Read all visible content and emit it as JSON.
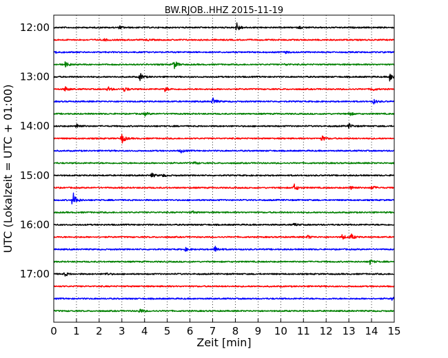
{
  "chart_data": {
    "type": "line",
    "title": "BW.RJOB..HHZ 2015-11-19",
    "xlabel": "Zeit  [min]",
    "ylabel": "UTC (Lokalzeit = UTC + 01:00)",
    "xlim": [
      0,
      15
    ],
    "x_ticks": [
      "0",
      "1",
      "2",
      "3",
      "4",
      "5",
      "6",
      "7",
      "8",
      "9",
      "10",
      "11",
      "12",
      "13",
      "14",
      "15"
    ],
    "y_tick_labels": [
      "12:00",
      "13:00",
      "14:00",
      "15:00",
      "16:00",
      "17:00"
    ],
    "grid": "vertical dotted at each minute",
    "trace_colors": [
      "#000000",
      "#ff0000",
      "#0000ff",
      "#008000"
    ],
    "series": [
      {
        "start": "12:00",
        "events": [
          {
            "t": 2.9,
            "amp": 0.25
          },
          {
            "t": 8.05,
            "amp": 0.85
          },
          {
            "t": 10.8,
            "amp": 0.2
          }
        ]
      },
      {
        "start": "12:15",
        "events": [
          {
            "t": 2.2,
            "amp": 0.2
          },
          {
            "t": 4.1,
            "amp": 0.15
          }
        ]
      },
      {
        "start": "12:30",
        "events": [
          {
            "t": 0.1,
            "amp": 0.2
          },
          {
            "t": 10.2,
            "amp": 0.15
          }
        ]
      },
      {
        "start": "12:45",
        "events": [
          {
            "t": 0.5,
            "amp": 0.4
          },
          {
            "t": 5.3,
            "amp": 0.7
          },
          {
            "t": 10.2,
            "amp": 0.15
          }
        ]
      },
      {
        "start": "13:00",
        "events": [
          {
            "t": 3.8,
            "amp": 0.6
          },
          {
            "t": 14.8,
            "amp": 0.7
          }
        ]
      },
      {
        "start": "13:15",
        "events": [
          {
            "t": 0.5,
            "amp": 0.4
          },
          {
            "t": 2.4,
            "amp": 0.35
          },
          {
            "t": 3.1,
            "amp": 0.4
          },
          {
            "t": 4.9,
            "amp": 0.35
          },
          {
            "t": 14.0,
            "amp": 0.35
          }
        ]
      },
      {
        "start": "13:30",
        "events": [
          {
            "t": 7.0,
            "amp": 0.6
          },
          {
            "t": 14.1,
            "amp": 0.35
          }
        ]
      },
      {
        "start": "13:45",
        "events": [
          {
            "t": 4.0,
            "amp": 0.3
          },
          {
            "t": 13.0,
            "amp": 0.35
          }
        ]
      },
      {
        "start": "14:00",
        "events": [
          {
            "t": 1.0,
            "amp": 0.5
          },
          {
            "t": 13.0,
            "amp": 0.4
          }
        ]
      },
      {
        "start": "14:15",
        "events": [
          {
            "t": 3.0,
            "amp": 0.8
          },
          {
            "t": 11.8,
            "amp": 0.5
          }
        ]
      },
      {
        "start": "14:30",
        "events": [
          {
            "t": 5.6,
            "amp": 0.3
          }
        ]
      },
      {
        "start": "14:45",
        "events": [
          {
            "t": 6.2,
            "amp": 0.2
          }
        ]
      },
      {
        "start": "15:00",
        "events": [
          {
            "t": 4.3,
            "amp": 0.4
          },
          {
            "t": 4.8,
            "amp": 0.2
          }
        ]
      },
      {
        "start": "15:15",
        "events": [
          {
            "t": 10.6,
            "amp": 0.55
          },
          {
            "t": 13.1,
            "amp": 0.35
          },
          {
            "t": 14.0,
            "amp": 0.4
          }
        ]
      },
      {
        "start": "15:30",
        "events": [
          {
            "t": 0.85,
            "amp": 1.3
          }
        ]
      },
      {
        "start": "15:45",
        "events": [
          {
            "t": 6.1,
            "amp": 0.2
          }
        ]
      },
      {
        "start": "16:00",
        "events": [
          {
            "t": 10.6,
            "amp": 0.25
          }
        ]
      },
      {
        "start": "16:15",
        "events": [
          {
            "t": 11.2,
            "amp": 0.25
          },
          {
            "t": 12.7,
            "amp": 0.4
          },
          {
            "t": 13.1,
            "amp": 0.45
          }
        ]
      },
      {
        "start": "16:30",
        "events": [
          {
            "t": 5.8,
            "amp": 0.25
          },
          {
            "t": 7.1,
            "amp": 0.55
          }
        ]
      },
      {
        "start": "16:45",
        "events": [
          {
            "t": 13.9,
            "amp": 0.5
          }
        ]
      },
      {
        "start": "17:00",
        "events": [
          {
            "t": 0.5,
            "amp": 0.3
          },
          {
            "t": 2.3,
            "amp": 0.2
          }
        ]
      },
      {
        "start": "17:15",
        "events": []
      },
      {
        "start": "17:30",
        "events": [
          {
            "t": 14.9,
            "amp": 0.3
          }
        ]
      },
      {
        "start": "17:45",
        "events": [
          {
            "t": 3.8,
            "amp": 0.35
          }
        ]
      }
    ]
  }
}
